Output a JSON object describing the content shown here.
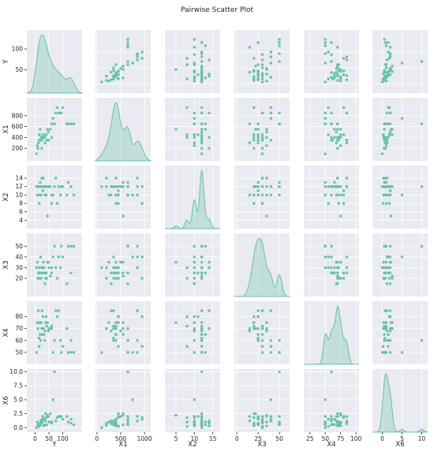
{
  "chart_data": {
    "type": "scatter",
    "title": "Pairwise Scatter Plot",
    "variables": [
      "Y",
      "X1",
      "X2",
      "X3",
      "X4",
      "X6"
    ],
    "color": "#66c2a5",
    "background": "#eaeaf2",
    "grid": true,
    "diagonal": "kde",
    "axes": {
      "Y": {
        "range": [
          -30,
          170
        ],
        "ticks": [
          0,
          50,
          100
        ]
      },
      "X1": {
        "range": [
          -30,
          1130
        ],
        "ticks": [
          0,
          500,
          1000
        ],
        "row_ticks": [
          200,
          400,
          600,
          800
        ]
      },
      "X2": {
        "range": [
          2,
          17
        ],
        "ticks": [
          5,
          10,
          15
        ],
        "row_ticks": [
          4,
          6,
          8,
          10,
          12,
          14
        ]
      },
      "X3": {
        "range": [
          3,
          62
        ],
        "ticks": [
          0,
          25,
          50
        ],
        "row_ticks": [
          20,
          30,
          40,
          50
        ],
        "col_range": [
          -3,
          62
        ]
      },
      "X4": {
        "range": [
          40,
          93
        ],
        "ticks": [
          25,
          50,
          75,
          100
        ],
        "row_ticks": [
          50,
          60,
          70,
          80
        ],
        "col_range": [
          15,
          105
        ]
      },
      "X6": {
        "range": [
          -0.8,
          10.5
        ],
        "ticks": [
          0,
          5,
          10
        ],
        "row_ticks": [
          0.0,
          2.5,
          5.0,
          7.5,
          10.0
        ],
        "col_range": [
          -2.5,
          11.5
        ]
      }
    },
    "rows": [
      {
        "Y": 140,
        "X1": 650,
        "X2": 10,
        "X3": 50,
        "X4": 50,
        "X6": 0.5
      },
      {
        "Y": 130,
        "X1": 650,
        "X2": 12,
        "X3": 50,
        "X4": 50,
        "X6": 0.8
      },
      {
        "Y": 120,
        "X1": 650,
        "X2": 13,
        "X3": 50,
        "X4": 50,
        "X6": 1.0
      },
      {
        "Y": 100,
        "X1": 950,
        "X2": 12,
        "X3": 40,
        "X4": 55,
        "X6": 1.5
      },
      {
        "Y": 92,
        "X1": 850,
        "X2": 10,
        "X3": 30,
        "X4": 60,
        "X6": 2.0
      },
      {
        "Y": 85,
        "X1": 850,
        "X2": 12,
        "X3": 40,
        "X4": 85,
        "X6": 2.0
      },
      {
        "Y": 80,
        "X1": 950,
        "X2": 8,
        "X3": 20,
        "X4": 80,
        "X6": 1.8
      },
      {
        "Y": 75,
        "X1": 850,
        "X2": 14,
        "X3": 30,
        "X4": 85,
        "X6": 1.2
      },
      {
        "Y": 70,
        "X1": 650,
        "X2": 12,
        "X3": 50,
        "X4": 60,
        "X6": 10
      },
      {
        "Y": 65,
        "X1": 750,
        "X2": 10,
        "X3": 40,
        "X4": 50,
        "X6": 5.0
      },
      {
        "Y": 60,
        "X1": 650,
        "X2": 10,
        "X3": 25,
        "X4": 70,
        "X6": 0.8
      },
      {
        "Y": 55,
        "X1": 550,
        "X2": 12,
        "X3": 22,
        "X4": 70,
        "X6": 2.5
      },
      {
        "Y": 50,
        "X1": 350,
        "X2": 12,
        "X3": 30,
        "X4": 70,
        "X6": 1.0
      },
      {
        "Y": 45,
        "X1": 550,
        "X2": 5,
        "X3": 35,
        "X4": 75,
        "X6": 2.2
      },
      {
        "Y": 40,
        "X1": 450,
        "X2": 10,
        "X3": 25,
        "X4": 80,
        "X6": 1.8
      },
      {
        "Y": 38,
        "X1": 450,
        "X2": 12,
        "X3": 20,
        "X4": 75,
        "X6": 2.5
      },
      {
        "Y": 35,
        "X1": 400,
        "X2": 12,
        "X3": 25,
        "X4": 60,
        "X6": 0.5
      },
      {
        "Y": 32,
        "X1": 400,
        "X2": 12,
        "X3": 30,
        "X4": 65,
        "X6": 1.5
      },
      {
        "Y": 30,
        "X1": 400,
        "X2": 14,
        "X3": 35,
        "X4": 70,
        "X6": 0.3
      },
      {
        "Y": 28,
        "X1": 450,
        "X2": 11,
        "X3": 25,
        "X4": 80,
        "X6": 2.0
      },
      {
        "Y": 25,
        "X1": 350,
        "X2": 12,
        "X3": 30,
        "X4": 85,
        "X6": 1.0
      },
      {
        "Y": 22,
        "X1": 400,
        "X2": 10,
        "X3": 20,
        "X4": 75,
        "X6": 0.8
      },
      {
        "Y": 20,
        "X1": 350,
        "X2": 12,
        "X3": 40,
        "X4": 60,
        "X6": 1.2
      },
      {
        "Y": 18,
        "X1": 550,
        "X2": 13,
        "X3": 25,
        "X4": 65,
        "X6": 0.5
      },
      {
        "Y": 15,
        "X1": 450,
        "X2": 8,
        "X3": 30,
        "X4": 55,
        "X6": 0.2
      },
      {
        "Y": 12,
        "X1": 300,
        "X2": 12,
        "X3": 25,
        "X4": 85,
        "X6": 0.7
      },
      {
        "Y": 10,
        "X1": 200,
        "X2": 12,
        "X3": 20,
        "X4": 70,
        "X6": 0.4
      },
      {
        "Y": 8,
        "X1": 250,
        "X2": 10,
        "X3": 35,
        "X4": 75,
        "X6": 1.0
      },
      {
        "Y": 5,
        "X1": 100,
        "X2": 12,
        "X3": 30,
        "X4": 50,
        "X6": 0.0
      },
      {
        "Y": 130,
        "X1": 650,
        "X2": 12,
        "X3": 25,
        "X4": 60,
        "X6": 1.5
      },
      {
        "Y": 115,
        "X1": 650,
        "X2": 10,
        "X3": 15,
        "X4": 70,
        "X6": 2.0
      },
      {
        "Y": 95,
        "X1": 850,
        "X2": 12,
        "X3": 50,
        "X4": 50,
        "X6": 2.0
      },
      {
        "Y": 60,
        "X1": 400,
        "X2": 8,
        "X3": 30,
        "X4": 72,
        "X6": 1.0
      },
      {
        "Y": 48,
        "X1": 500,
        "X2": 12,
        "X3": 35,
        "X4": 68,
        "X6": 2.0
      },
      {
        "Y": 42,
        "X1": 350,
        "X2": 12,
        "X3": 20,
        "X4": 72,
        "X6": 0.5
      },
      {
        "Y": 36,
        "X1": 300,
        "X2": 10,
        "X3": 15,
        "X4": 68,
        "X6": 1.2
      },
      {
        "Y": 26,
        "X1": 400,
        "X2": 12,
        "X3": 25,
        "X4": 65,
        "X6": 1.5
      },
      {
        "Y": 24,
        "X1": 200,
        "X2": 14,
        "X3": 30,
        "X4": 70,
        "X6": 0.8
      },
      {
        "Y": 16,
        "X1": 450,
        "X2": 10,
        "X3": 20,
        "X4": 75,
        "X6": 0.3
      },
      {
        "Y": 14,
        "X1": 350,
        "X2": 12,
        "X3": 25,
        "X4": 62,
        "X6": 0.6
      }
    ]
  }
}
